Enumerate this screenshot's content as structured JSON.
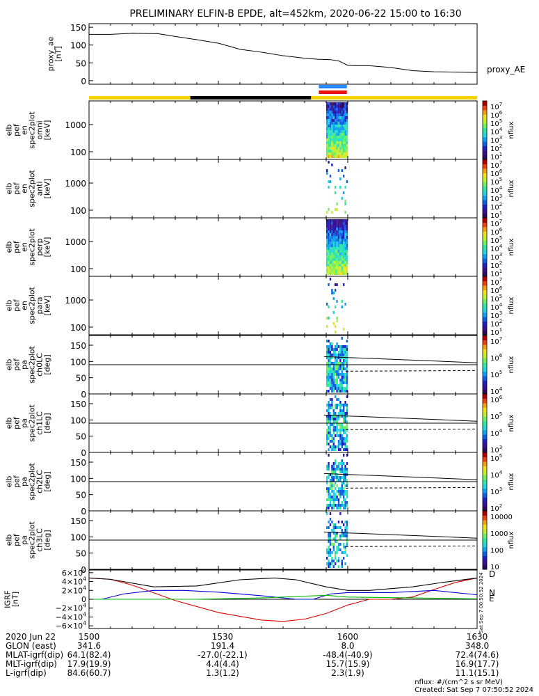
{
  "title": "PRELIMINARY ELFIN-B EPDE, alt=452km, 2020-06-22 15:00 to 16:30",
  "chart_data": [
    {
      "type": "line",
      "ylabel": [
        "proxy_ae",
        "[nT]"
      ],
      "series_label": "proxy_AE",
      "yticks": [
        "150",
        "100",
        "50",
        "0"
      ],
      "ylim": [
        -10,
        160
      ],
      "x_minutes": [
        0,
        5,
        10,
        16,
        20,
        25,
        30,
        33,
        35,
        40,
        45,
        50,
        53,
        56,
        58,
        60,
        62,
        65,
        70,
        75,
        80,
        85,
        90
      ],
      "values": [
        130,
        130,
        133,
        132,
        124,
        115,
        105,
        95,
        88,
        80,
        70,
        63,
        60,
        59,
        55,
        43,
        42,
        42,
        37,
        28,
        25,
        24,
        23
      ]
    },
    {
      "type": "heatmap",
      "ylabel": [
        "elb",
        "pef",
        "en",
        "spec2plot",
        "omni",
        "[keV]"
      ],
      "yticks": [
        "1000",
        "100"
      ],
      "colorbar_ticks": [
        "10^7",
        "10^6",
        "10^5",
        "10^4",
        "10^3",
        "10^2",
        "10^1"
      ],
      "colorbar_label": "nflux"
    },
    {
      "type": "heatmap",
      "ylabel": [
        "elb",
        "pef",
        "en",
        "spec2plot",
        "anti",
        "[keV]"
      ],
      "yticks": [
        "1000",
        "100"
      ],
      "colorbar_ticks": [
        "10^7",
        "10^6",
        "10^5",
        "10^4",
        "10^3",
        "10^2",
        "10^1"
      ],
      "colorbar_label": "nflux"
    },
    {
      "type": "heatmap",
      "ylabel": [
        "elb",
        "pef",
        "en",
        "spec2plot",
        "perp",
        "[keV]"
      ],
      "yticks": [
        "1000",
        "100"
      ],
      "colorbar_ticks": [
        "10^7",
        "10^6",
        "10^5",
        "10^4",
        "10^3",
        "10^2",
        "10^1"
      ],
      "colorbar_label": "nflux"
    },
    {
      "type": "heatmap",
      "ylabel": [
        "elb",
        "pef",
        "en",
        "spec2plot",
        "para",
        "[keV]"
      ],
      "yticks": [
        "1000",
        "100"
      ],
      "colorbar_ticks": [
        "10^7",
        "10^6",
        "10^5",
        "10^4",
        "10^3",
        "10^2",
        "10^1"
      ],
      "colorbar_label": "nflux"
    },
    {
      "type": "heatmap",
      "ylabel": [
        "elb",
        "pef",
        "pa",
        "spec2plot",
        "ch0LC",
        "[deg]"
      ],
      "yticks": [
        "150",
        "100",
        "50",
        "0"
      ],
      "colorbar_ticks": [
        "10^7",
        "10^6",
        "10^5",
        "10^4"
      ],
      "colorbar_label": "nflux"
    },
    {
      "type": "heatmap",
      "ylabel": [
        "elb",
        "pef",
        "pa",
        "spec2plot",
        "ch1LC",
        "[deg]"
      ],
      "yticks": [
        "150",
        "100",
        "50",
        "0"
      ],
      "colorbar_ticks": [
        "10^6",
        "10^5",
        "10^4",
        "10^3"
      ],
      "colorbar_label": "nflux"
    },
    {
      "type": "heatmap",
      "ylabel": [
        "elb",
        "pef",
        "pa",
        "spec2plot",
        "ch2LC",
        "[deg]"
      ],
      "yticks": [
        "150",
        "100",
        "50",
        "0"
      ],
      "colorbar_ticks": [
        "10^5",
        "10^4",
        "10^3",
        "10^2"
      ],
      "colorbar_label": "nflux"
    },
    {
      "type": "heatmap",
      "ylabel": [
        "elb",
        "pef",
        "pa",
        "spec2plot",
        "ch3LC",
        "[deg]"
      ],
      "yticks": [
        "150",
        "100",
        "50",
        "0"
      ],
      "colorbar_ticks": [
        "10000",
        "1000",
        "100",
        "10"
      ],
      "colorbar_label": "nflux"
    },
    {
      "type": "line",
      "ylabel": [
        "IGRF",
        "[nT]"
      ],
      "yticks": [
        "6×10^4",
        "4×10^4",
        "2×10^4",
        "0",
        "−2×10^4",
        "−4×10^4",
        "−6×10^4"
      ],
      "ylim": [
        -66000,
        66000
      ],
      "legend": [
        "D",
        "N",
        "E"
      ],
      "series": [
        {
          "name": "D",
          "color": "#dd0000",
          "x_minutes": [
            0,
            5,
            10,
            20,
            30,
            40,
            45,
            50,
            55,
            60,
            65,
            70,
            75,
            80,
            85,
            90
          ],
          "values": [
            48000,
            45000,
            32000,
            -3000,
            -30000,
            -47000,
            -50000,
            -45000,
            -32000,
            -13000,
            0,
            0,
            5000,
            22000,
            38000,
            48000
          ]
        },
        {
          "name": "N",
          "color": "#0000dd",
          "x_minutes": [
            0,
            3,
            8,
            15,
            22,
            30,
            40,
            48,
            52,
            56,
            60,
            70,
            80,
            90
          ],
          "values": [
            0,
            0,
            12000,
            20000,
            20000,
            16000,
            8000,
            0,
            0,
            12000,
            15000,
            15000,
            20000,
            10000
          ]
        },
        {
          "name": "black",
          "color": "#000000",
          "x_minutes": [
            0,
            5,
            15,
            25,
            35,
            43,
            48,
            55,
            60,
            65,
            75,
            82,
            90
          ],
          "values": [
            48000,
            45000,
            28000,
            30000,
            44000,
            48000,
            44000,
            28000,
            20000,
            20000,
            28000,
            38000,
            48000
          ]
        },
        {
          "name": "E",
          "color": "#00bb00",
          "x_minutes": [
            0,
            25,
            40,
            50,
            55,
            60,
            75,
            90
          ],
          "values": [
            0,
            0,
            3000,
            7000,
            9000,
            5000,
            3000,
            1000
          ]
        }
      ]
    }
  ],
  "timeline": {
    "segments": [
      {
        "from": 0,
        "to": 23.5,
        "color": "#f5d200"
      },
      {
        "from": 23.5,
        "to": 51.5,
        "color": "#000000"
      },
      {
        "from": 51.5,
        "to": 90,
        "color": "#f5d200"
      }
    ],
    "markers": [
      {
        "from": 53.3,
        "to": 59.8,
        "color": "#2288ff"
      },
      {
        "from": 53.3,
        "to": 59.8,
        "color": "#ee1111"
      }
    ]
  },
  "xaxis": {
    "labels": [
      {
        "row": "2020 Jun 22",
        "values": [
          "1500",
          "1530",
          "1600",
          "1630"
        ]
      },
      {
        "row": "GLON (east)",
        "values": [
          "341.6",
          "191.4",
          "8.0",
          "348.0"
        ]
      },
      {
        "row": "MLAT-igrf(dip)",
        "values": [
          "64.1(82.4)",
          "-27.0(-22.1)",
          "-48.4(-40.9)",
          "72.4(74.6)"
        ]
      },
      {
        "row": "MLT-igrf(dip)",
        "values": [
          "17.9(19.9)",
          "4.4(4.4)",
          "15.7(15.9)",
          "16.9(17.7)"
        ]
      },
      {
        "row": "L-igrf(dip)",
        "values": [
          "84.6(60.7)",
          "1.3(1.2)",
          "2.3(1.9)",
          "11.1(15.1)"
        ]
      }
    ]
  },
  "notes": {
    "units": "nflux: #/(cm^2 s sr MeV)",
    "created": "Created: Sat Sep  7 07:50:52 2024",
    "side_stamp": "Sat Sep  7 00:50:52 2024"
  }
}
